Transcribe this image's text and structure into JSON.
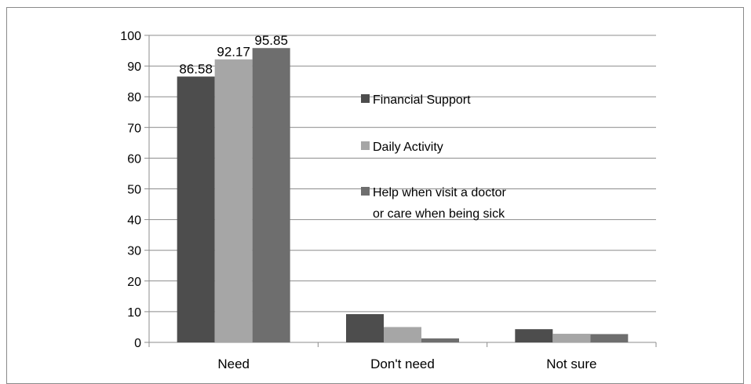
{
  "chart_data": {
    "type": "bar",
    "categories": [
      "Need",
      "Don't need",
      "Not sure"
    ],
    "series": [
      {
        "name": "Financial Support",
        "values": [
          86.58,
          9.2,
          4.3
        ],
        "color": "#4d4d4d"
      },
      {
        "name": "Daily Activity",
        "values": [
          92.17,
          5.0,
          2.8
        ],
        "color": "#a6a6a6"
      },
      {
        "name": "Help when visit a doctor or care when being sick",
        "values": [
          95.85,
          1.3,
          2.7
        ],
        "color": "#6e6e6e"
      }
    ],
    "legend_lines": [
      [
        "Financial Support"
      ],
      [
        "Daily Activity"
      ],
      [
        "Help when visit a doctor",
        "or care when being sick"
      ]
    ],
    "data_labels": [
      {
        "category": 0,
        "series": 0,
        "text": "86.58"
      },
      {
        "category": 0,
        "series": 1,
        "text": "92.17"
      },
      {
        "category": 0,
        "series": 2,
        "text": "95.85"
      }
    ],
    "y_ticks": [
      "0",
      "10",
      "20",
      "30",
      "40",
      "50",
      "60",
      "70",
      "80",
      "90",
      "100"
    ],
    "ylim": [
      0,
      100
    ],
    "grid": true,
    "legend_position": "inside-right",
    "title": "",
    "xlabel": "",
    "ylabel": ""
  }
}
